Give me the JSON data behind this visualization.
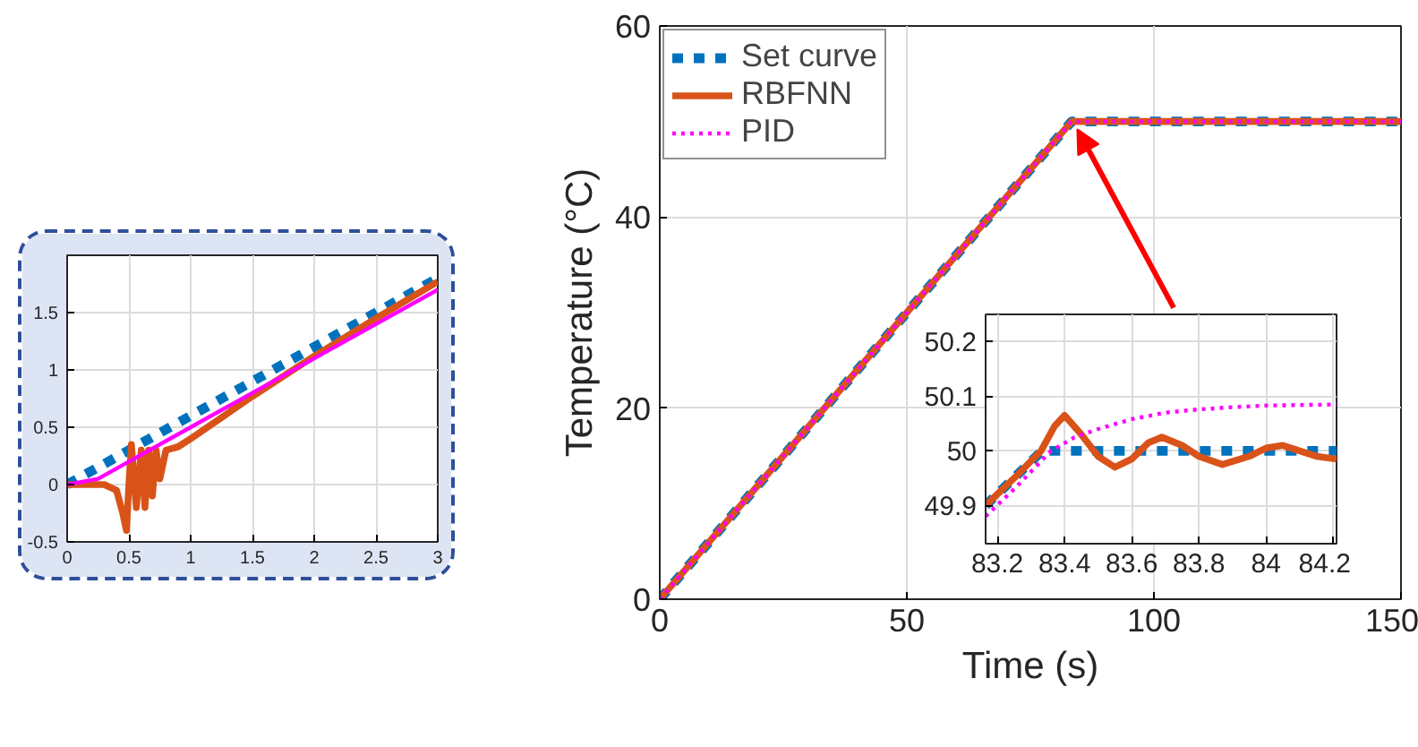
{
  "chart_data": [
    {
      "type": "line",
      "xlim": [
        0,
        3
      ],
      "ylim": [
        -0.5,
        2.0
      ],
      "xticks": [
        0,
        0.5,
        1,
        1.5,
        2,
        2.5,
        3
      ],
      "yticks": [
        -0.5,
        0,
        0.5,
        1,
        1.5
      ],
      "grid": true,
      "series": [
        {
          "color": "#0072bd",
          "line_style": "dashed",
          "x": [
            0,
            3
          ],
          "values": [
            0,
            1.8
          ]
        },
        {
          "color": "#d95319",
          "line_style": "solid",
          "x": [
            0,
            0.3,
            0.4,
            0.45,
            0.48,
            0.5,
            0.52,
            0.56,
            0.6,
            0.63,
            0.66,
            0.69,
            0.72,
            0.75,
            0.8,
            0.9,
            1,
            1.5,
            2,
            2.5,
            3
          ],
          "values": [
            0,
            0,
            -0.05,
            -0.25,
            -0.4,
            0.0,
            0.35,
            -0.2,
            0.3,
            -0.2,
            0.3,
            -0.1,
            0.3,
            0.05,
            0.3,
            0.33,
            0.4,
            0.77,
            1.12,
            1.45,
            1.77
          ]
        },
        {
          "color": "#ff00ff",
          "line_style": "solid",
          "x": [
            0,
            0.25,
            0.5,
            1,
            2,
            3
          ],
          "values": [
            0,
            0.05,
            0.2,
            0.5,
            1.1,
            1.7
          ]
        }
      ]
    },
    {
      "type": "line",
      "xlabel": "Time (s)",
      "ylabel": "Temperature (°C)",
      "xlim": [
        0,
        150
      ],
      "ylim": [
        0,
        60
      ],
      "xticks": [
        0,
        50,
        100,
        150
      ],
      "yticks": [
        0,
        20,
        40,
        60
      ],
      "grid": true,
      "legend": "top left",
      "series": [
        {
          "name": "Set curve",
          "color": "#0072bd",
          "line_style": "dashed",
          "x": [
            0,
            83.33,
            150
          ],
          "values": [
            0,
            50,
            50
          ]
        },
        {
          "name": "RBFNN",
          "color": "#d95319",
          "line_style": "solid",
          "x": [
            0,
            83.33,
            150
          ],
          "values": [
            0,
            50,
            50
          ]
        },
        {
          "name": "PID",
          "color": "#ff00ff",
          "line_style": "dotted",
          "x": [
            0,
            83.33,
            150
          ],
          "values": [
            0,
            50,
            50
          ]
        }
      ]
    },
    {
      "type": "line",
      "xlim": [
        83.165,
        84.21
      ],
      "ylim": [
        49.83,
        50.25
      ],
      "xticks": [
        83.2,
        83.4,
        83.6,
        83.8,
        84,
        84.2
      ],
      "yticks": [
        49.9,
        50,
        50.1,
        50.2
      ],
      "grid": true,
      "series": [
        {
          "color": "#0072bd",
          "line_style": "dashed",
          "x": [
            83.165,
            83.333,
            84.21
          ],
          "values": [
            49.9,
            50,
            50
          ]
        },
        {
          "color": "#d95319",
          "line_style": "solid",
          "x": [
            83.165,
            83.25,
            83.33,
            83.37,
            83.4,
            83.45,
            83.5,
            83.55,
            83.6,
            83.65,
            83.69,
            83.75,
            83.8,
            83.87,
            83.95,
            84.0,
            84.05,
            84.1,
            84.15,
            84.21
          ],
          "values": [
            49.9,
            49.95,
            50.0,
            50.045,
            50.065,
            50.03,
            49.99,
            49.97,
            49.985,
            50.015,
            50.025,
            50.01,
            49.99,
            49.975,
            49.99,
            50.005,
            50.01,
            50.0,
            49.99,
            49.985
          ]
        },
        {
          "color": "#ff00ff",
          "line_style": "dotted",
          "x": [
            83.165,
            83.25,
            83.36,
            83.43,
            83.5,
            83.6,
            83.7,
            83.8,
            83.9,
            84.0,
            84.21
          ],
          "values": [
            49.88,
            49.93,
            50.0,
            50.025,
            50.04,
            50.058,
            50.07,
            50.076,
            50.08,
            50.083,
            50.085
          ]
        }
      ]
    }
  ]
}
